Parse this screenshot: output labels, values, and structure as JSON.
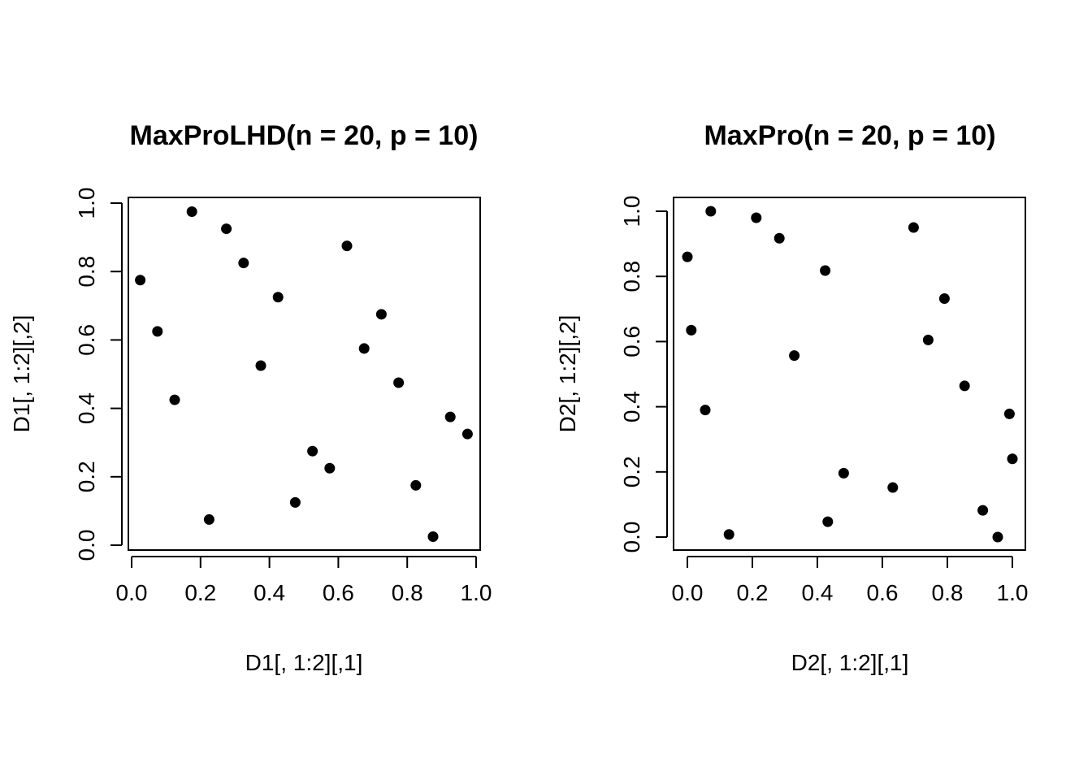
{
  "chart_data": [
    {
      "type": "scatter",
      "title": "MaxProLHD(n = 20, p = 10)",
      "xlabel": "D1[, 1:2][,1]",
      "ylabel": "D1[, 1:2][,2]",
      "xlim": [
        0,
        1
      ],
      "ylim": [
        0,
        1
      ],
      "xticks": [
        "0.0",
        "0.2",
        "0.4",
        "0.6",
        "0.8",
        "1.0"
      ],
      "yticks": [
        "0.0",
        "0.2",
        "0.4",
        "0.6",
        "0.8",
        "1.0"
      ],
      "grid": false,
      "points": [
        {
          "x": 0.025,
          "y": 0.775
        },
        {
          "x": 0.075,
          "y": 0.625
        },
        {
          "x": 0.125,
          "y": 0.425
        },
        {
          "x": 0.175,
          "y": 0.975
        },
        {
          "x": 0.225,
          "y": 0.075
        },
        {
          "x": 0.275,
          "y": 0.925
        },
        {
          "x": 0.325,
          "y": 0.825
        },
        {
          "x": 0.375,
          "y": 0.525
        },
        {
          "x": 0.425,
          "y": 0.725
        },
        {
          "x": 0.475,
          "y": 0.125
        },
        {
          "x": 0.525,
          "y": 0.275
        },
        {
          "x": 0.575,
          "y": 0.225
        },
        {
          "x": 0.625,
          "y": 0.875
        },
        {
          "x": 0.675,
          "y": 0.575
        },
        {
          "x": 0.725,
          "y": 0.675
        },
        {
          "x": 0.775,
          "y": 0.475
        },
        {
          "x": 0.825,
          "y": 0.175
        },
        {
          "x": 0.875,
          "y": 0.025
        },
        {
          "x": 0.925,
          "y": 0.375
        },
        {
          "x": 0.975,
          "y": 0.325
        }
      ]
    },
    {
      "type": "scatter",
      "title": "MaxPro(n = 20, p = 10)",
      "xlabel": "D2[, 1:2][,1]",
      "ylabel": "D2[, 1:2][,2]",
      "xlim": [
        0,
        1
      ],
      "ylim": [
        0,
        1
      ],
      "xticks": [
        "0.0",
        "0.2",
        "0.4",
        "0.6",
        "0.8",
        "1.0"
      ],
      "yticks": [
        "0.0",
        "0.2",
        "0.4",
        "0.6",
        "0.8",
        "1.0"
      ],
      "grid": false,
      "points": [
        {
          "x": 0.0,
          "y": 0.86
        },
        {
          "x": 0.012,
          "y": 0.635
        },
        {
          "x": 0.055,
          "y": 0.39
        },
        {
          "x": 0.072,
          "y": 1.0
        },
        {
          "x": 0.128,
          "y": 0.008
        },
        {
          "x": 0.212,
          "y": 0.98
        },
        {
          "x": 0.283,
          "y": 0.917
        },
        {
          "x": 0.329,
          "y": 0.557
        },
        {
          "x": 0.424,
          "y": 0.818
        },
        {
          "x": 0.432,
          "y": 0.047
        },
        {
          "x": 0.481,
          "y": 0.196
        },
        {
          "x": 0.632,
          "y": 0.152
        },
        {
          "x": 0.696,
          "y": 0.95
        },
        {
          "x": 0.741,
          "y": 0.605
        },
        {
          "x": 0.791,
          "y": 0.732
        },
        {
          "x": 0.853,
          "y": 0.464
        },
        {
          "x": 0.909,
          "y": 0.082
        },
        {
          "x": 0.955,
          "y": 0.0
        },
        {
          "x": 0.991,
          "y": 0.378
        },
        {
          "x": 1.0,
          "y": 0.24
        }
      ]
    }
  ]
}
